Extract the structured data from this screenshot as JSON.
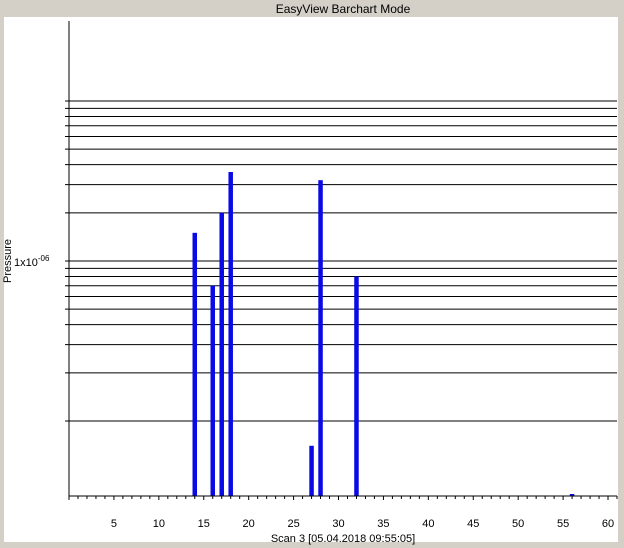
{
  "chart_data": {
    "type": "bar",
    "title": "EasyView Barchart Mode",
    "xlabel": "Scan 3 [05.04.2018 09:55:05]",
    "ylabel": "Pressure",
    "y_scale": "log",
    "y_tick_mantissa": "1x10",
    "y_tick_exponent": "-06",
    "xlim": [
      0,
      61
    ],
    "ylim": [
      3e-08,
      5e-06
    ],
    "x_ticks": [
      5,
      10,
      15,
      20,
      25,
      30,
      35,
      40,
      45,
      50,
      55,
      60
    ],
    "x": [
      14,
      16,
      17,
      18,
      27,
      28,
      32,
      56
    ],
    "values": [
      1.5e-06,
      7e-07,
      2e-06,
      3.6e-06,
      7e-08,
      3.2e-06,
      8e-07,
      3.05e-08
    ],
    "grid": true,
    "colors": {
      "bar": "#0a0ae6",
      "background": "#ffffff",
      "frame": "#d4d0c8",
      "grid": "#000000"
    }
  }
}
